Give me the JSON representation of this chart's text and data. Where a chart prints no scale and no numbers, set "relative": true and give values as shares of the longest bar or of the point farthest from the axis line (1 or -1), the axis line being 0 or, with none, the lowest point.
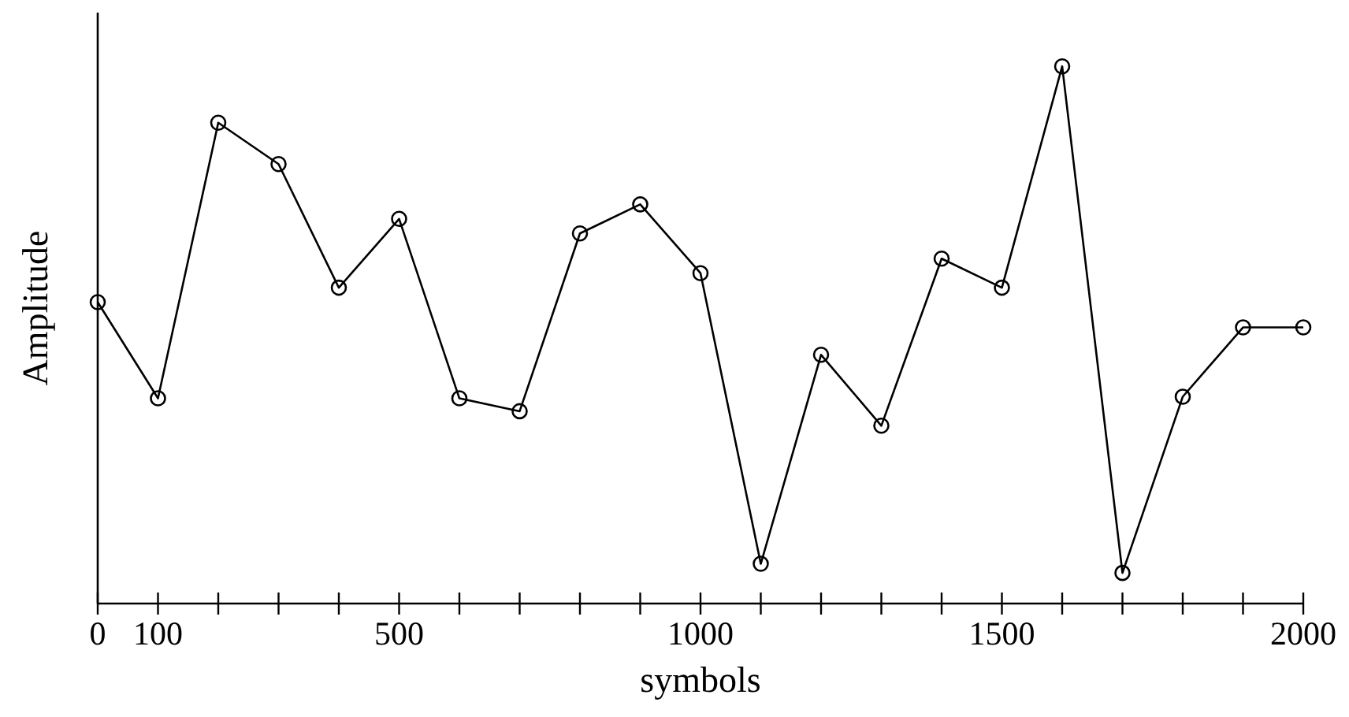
{
  "chart_data": {
    "type": "line",
    "xlabel": "symbols",
    "ylabel": "Amplitude",
    "relative": true,
    "marker": "circle",
    "line_style": "solid",
    "grid": false,
    "xlim": [
      0,
      2000
    ],
    "xticks": [
      0,
      100,
      {
        "value": 200,
        "label": null
      },
      {
        "value": 300,
        "label": null
      },
      {
        "value": 400,
        "label": null
      },
      500,
      {
        "value": 600,
        "label": null
      },
      {
        "value": 700,
        "label": null
      },
      {
        "value": 800,
        "label": null
      },
      {
        "value": 900,
        "label": null
      },
      1000,
      {
        "value": 1100,
        "label": null
      },
      {
        "value": 1200,
        "label": null
      },
      {
        "value": 1300,
        "label": null
      },
      {
        "value": 1400,
        "label": null
      },
      1500,
      {
        "value": 1600,
        "label": null
      },
      {
        "value": 1700,
        "label": null
      },
      {
        "value": 1800,
        "label": null
      },
      {
        "value": 1900,
        "label": null
      },
      2000
    ],
    "x": [
      0,
      100,
      200,
      300,
      400,
      500,
      600,
      700,
      800,
      900,
      1000,
      1100,
      1200,
      1300,
      1400,
      1500,
      1600,
      1700,
      1800,
      1900,
      2000
    ],
    "series": [
      {
        "color": "#000000",
        "values": [
          0.561,
          0.382,
          0.895,
          0.818,
          0.588,
          0.716,
          0.382,
          0.358,
          0.689,
          0.743,
          0.615,
          0.074,
          0.463,
          0.331,
          0.642,
          0.588,
          1,
          0.057,
          0.385,
          0.514,
          0.514
        ]
      }
    ]
  }
}
